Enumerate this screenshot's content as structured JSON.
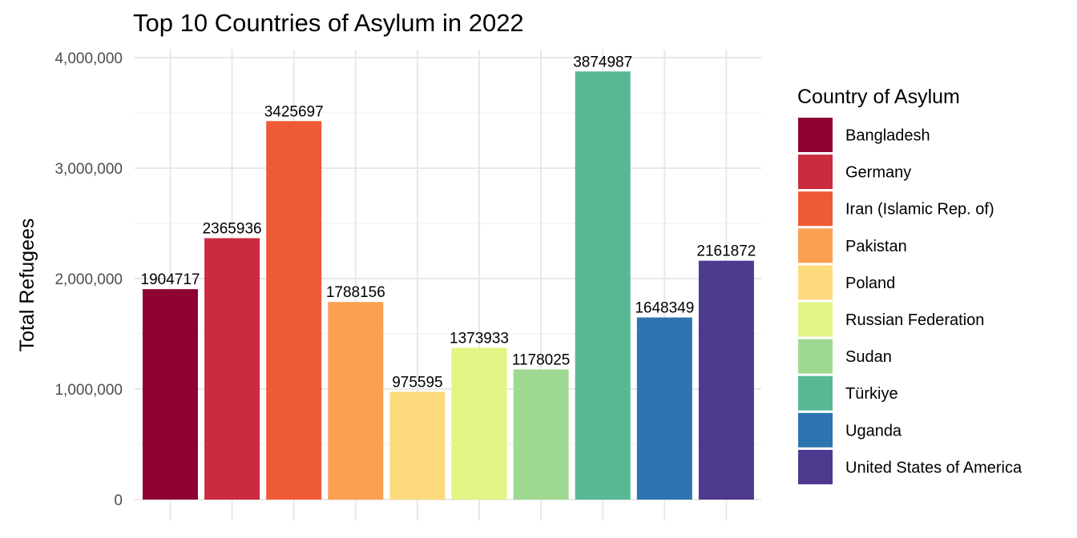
{
  "chart_data": {
    "type": "bar",
    "title": "Top 10 Countries of Asylum in 2022",
    "xlabel": "",
    "ylabel": "Total Refugees",
    "ylim": [
      0,
      4000000
    ],
    "yticks": [
      0,
      1000000,
      2000000,
      3000000,
      4000000
    ],
    "ytick_labels": [
      "0",
      "1,000,000",
      "2,000,000",
      "3,000,000",
      "4,000,000"
    ],
    "grid": true,
    "legend": {
      "title": "Country of Asylum",
      "position": "right"
    },
    "categories": [
      "Bangladesh",
      "Germany",
      "Iran (Islamic Rep. of)",
      "Pakistan",
      "Poland",
      "Russian Federation",
      "Sudan",
      "Türkiye",
      "Uganda",
      "United States of America"
    ],
    "values": [
      1904717,
      2365936,
      3425697,
      1788156,
      975595,
      1373933,
      1178025,
      3874987,
      1648349,
      2161872
    ],
    "value_labels": [
      "1904717",
      "2365936",
      "3425697",
      "1788156",
      "975595",
      "1373933",
      "1178025",
      "3874987",
      "1648349",
      "2161872"
    ],
    "colors": [
      "#8f0132",
      "#cb2a3f",
      "#ef5a36",
      "#fba052",
      "#fddb7c",
      "#e1f585",
      "#9fd991",
      "#57b993",
      "#2d74b1",
      "#4d3a8f"
    ]
  }
}
